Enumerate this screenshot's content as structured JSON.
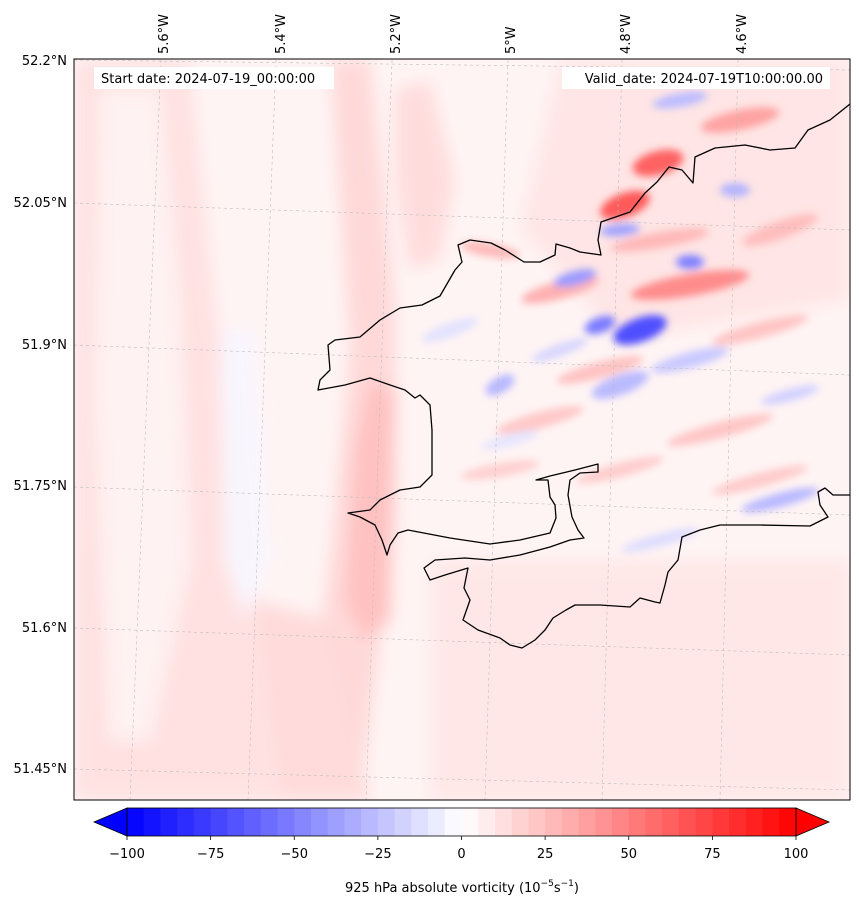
{
  "header": {
    "start_date": "Start date: 2024-07-19_00:00:00",
    "valid_date": "Valid_date: 2024-07-19T10:00:00.00"
  },
  "axes": {
    "lon_ticks": [
      "5.6°W",
      "5.4°W",
      "5.2°W",
      "5°W",
      "4.8°W",
      "4.6°W"
    ],
    "lat_ticks": [
      "52.2°N",
      "52.05°N",
      "51.9°N",
      "51.75°N",
      "51.6°N",
      "51.45°N"
    ]
  },
  "colorbar": {
    "ticks": [
      "−100",
      "−75",
      "−50",
      "−25",
      "0",
      "25",
      "50",
      "75",
      "100"
    ],
    "label_main": "925 hPa absolute vorticity (10",
    "label_exp1": "−5",
    "label_mid": "s",
    "label_exp2": "−1",
    "label_end": ")",
    "min_value": -100,
    "max_value": 100,
    "min_color": "#0000ff",
    "max_color": "#ff0000"
  }
}
